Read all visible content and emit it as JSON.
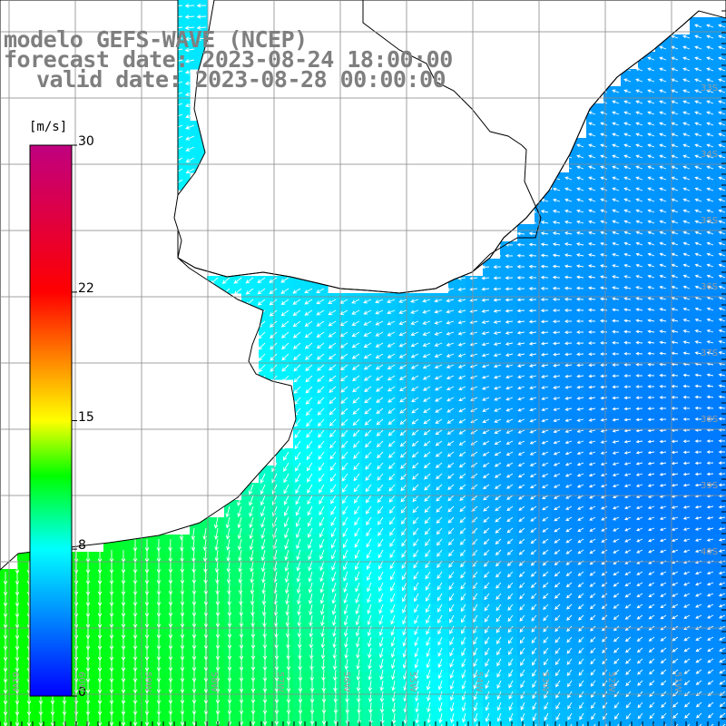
{
  "title": {
    "line1": "modelo GEFS-WAVE (NCEP)",
    "line2": "forecast date: 2023-08-24 18:00:00",
    "line3": "valid date: 2023-08-28 00:00:00"
  },
  "colorbar": {
    "units": "[m/s]",
    "min": 0,
    "max": 30,
    "ticks": [
      {
        "value": 30,
        "label": "30"
      },
      {
        "value": 22,
        "label": "22"
      },
      {
        "value": 15,
        "label": "15"
      },
      {
        "value": 8,
        "label": "8"
      },
      {
        "value": 0,
        "label": "0"
      }
    ],
    "stops": [
      {
        "value": 0,
        "color": "#0000ff"
      },
      {
        "value": 8,
        "color": "#00ffff"
      },
      {
        "value": 12,
        "color": "#00ff00"
      },
      {
        "value": 15,
        "color": "#ffff00"
      },
      {
        "value": 22,
        "color": "#ff0000"
      },
      {
        "value": 30,
        "color": "#c00080"
      }
    ]
  },
  "colors": {
    "land": "#ffffff",
    "coast": "#000000",
    "grid": "#8c8c8c",
    "arrow": "#ffffff",
    "title": "#7f7f7f"
  },
  "lat_labels": [
    "33S",
    "34S",
    "35S",
    "36S",
    "37S",
    "38S",
    "39S",
    "40S"
  ],
  "lon_labels": [
    "61W",
    "60W",
    "59W",
    "58W",
    "57W",
    "56W",
    "55W",
    "54W",
    "53W",
    "52W",
    "51W"
  ],
  "chart_data": {
    "type": "heatmap",
    "variable": "wind speed with direction arrows",
    "units": "m/s",
    "lon_range": [
      -61.5,
      -50.5
    ],
    "lat_range": [
      -41,
      -30.3
    ],
    "speed_regions": [
      {
        "region": "southwest (near 60W-57W, 39S-41S)",
        "speed_mps": 12
      },
      {
        "region": "south central (55W-54W, 40S)",
        "speed_mps": 9
      },
      {
        "region": "central shelf (58W-56W, 37S)",
        "speed_mps": 6
      },
      {
        "region": "east (52W, 37S-38S)",
        "speed_mps": 2
      },
      {
        "region": "northeast (51W, 32S)",
        "speed_mps": 4
      }
    ]
  }
}
